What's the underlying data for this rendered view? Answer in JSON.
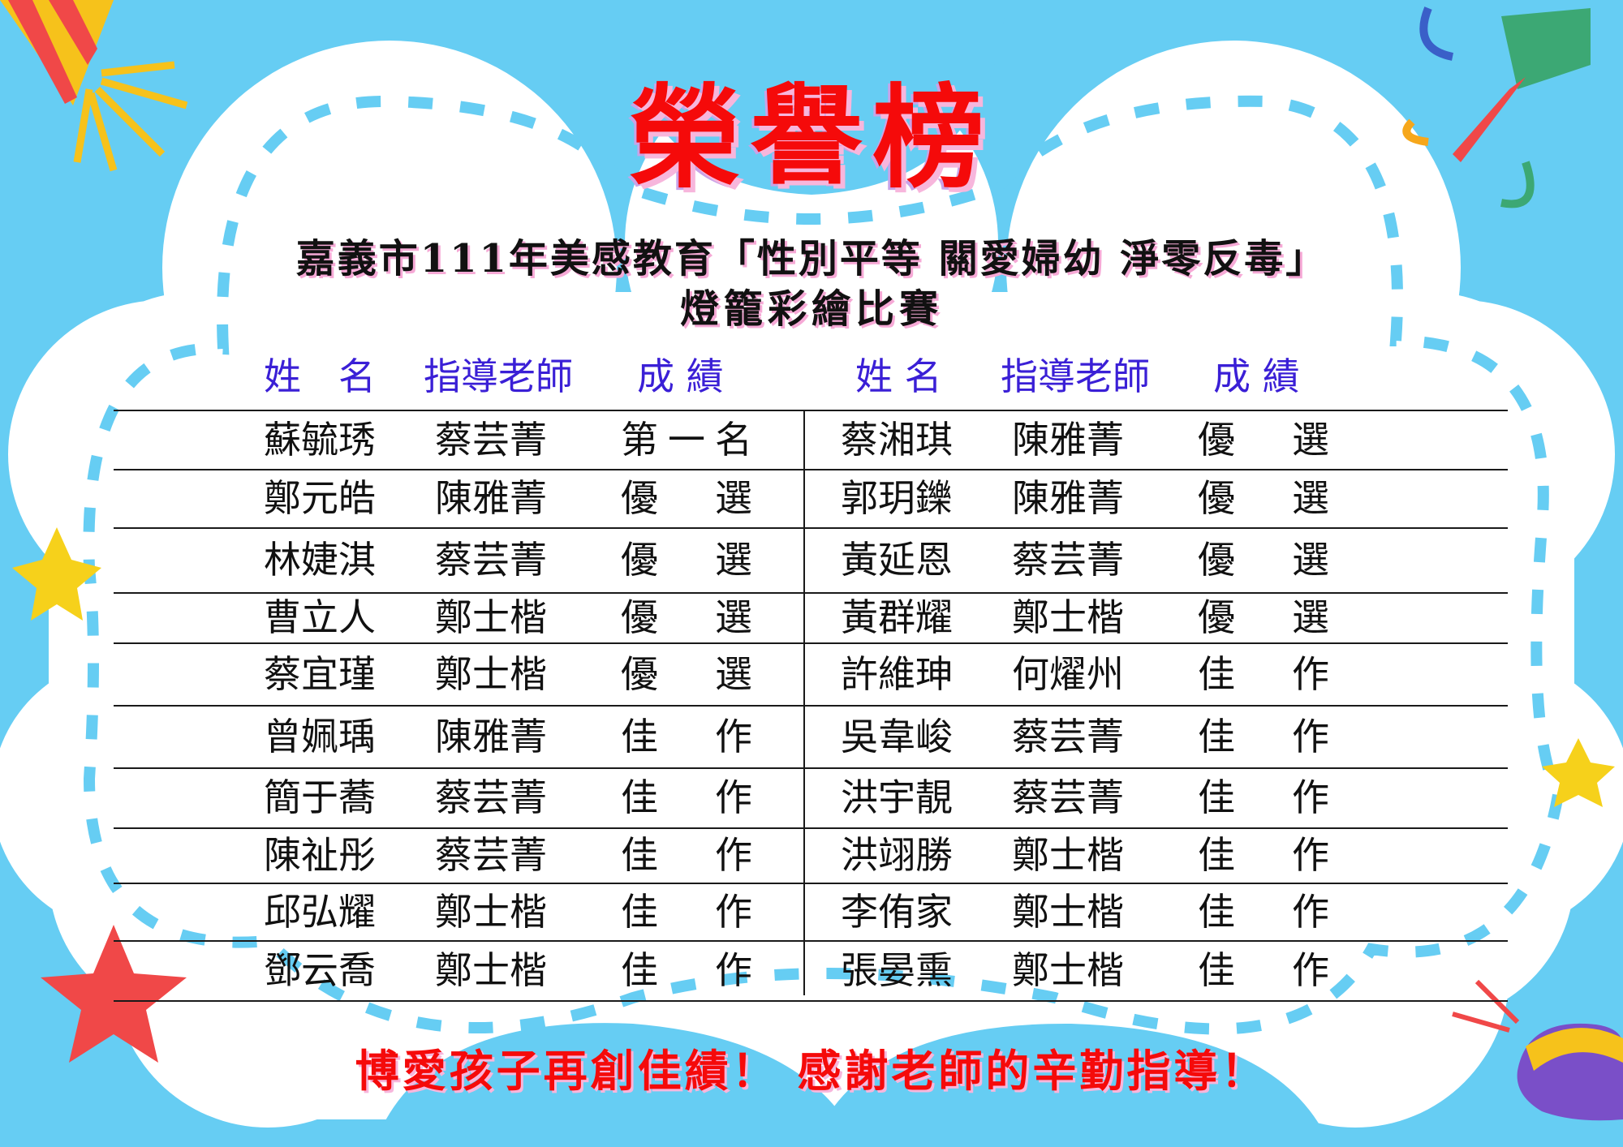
{
  "title": "榮譽榜",
  "subtitle_line1": "嘉義市111年美感教育「性別平等 關愛婦幼 淨零反毒」",
  "subtitle_line2": "燈籠彩繪比賽",
  "headers": {
    "left": {
      "name": "姓　名",
      "teacher": "指導老師",
      "result": "成 績"
    },
    "right": {
      "name": "姓 名",
      "teacher": "指導老師",
      "result": "成 績"
    }
  },
  "rows_left": [
    {
      "name": "蘇毓琇",
      "teacher": "蔡芸菁",
      "result": "第一名"
    },
    {
      "name": "鄭元皓",
      "teacher": "陳雅菁",
      "result": "優　選"
    },
    {
      "name": "林婕淇",
      "teacher": "蔡芸菁",
      "result": "優　選"
    },
    {
      "name": "曹立人",
      "teacher": "鄭士楷",
      "result": "優　選"
    },
    {
      "name": "蔡宜瑾",
      "teacher": "鄭士楷",
      "result": "優　選"
    },
    {
      "name": "曾姵瑀",
      "teacher": "陳雅菁",
      "result": "佳　作"
    },
    {
      "name": "簡于蕎",
      "teacher": "蔡芸菁",
      "result": "佳　作"
    },
    {
      "name": "陳祉彤",
      "teacher": "蔡芸菁",
      "result": "佳　作"
    },
    {
      "name": "邱弘耀",
      "teacher": "鄭士楷",
      "result": "佳　作"
    },
    {
      "name": "鄧云喬",
      "teacher": "鄭士楷",
      "result": "佳　作"
    }
  ],
  "rows_right": [
    {
      "name": "蔡湘琪",
      "teacher": "陳雅菁",
      "result": "優　選"
    },
    {
      "name": "郭玥鑠",
      "teacher": "陳雅菁",
      "result": "優　選"
    },
    {
      "name": "黃延恩",
      "teacher": "蔡芸菁",
      "result": "優　選"
    },
    {
      "name": "黃群耀",
      "teacher": "鄭士楷",
      "result": "優　選"
    },
    {
      "name": "許維珅",
      "teacher": "何燿州",
      "result": "佳　作"
    },
    {
      "name": "吳韋峻",
      "teacher": "蔡芸菁",
      "result": "佳　作"
    },
    {
      "name": "洪宇靚",
      "teacher": "蔡芸菁",
      "result": "佳　作"
    },
    {
      "name": "洪翊勝",
      "teacher": "鄭士楷",
      "result": "佳　作"
    },
    {
      "name": "李侑家",
      "teacher": "鄭士楷",
      "result": "佳　作"
    },
    {
      "name": "張晏熏",
      "teacher": "鄭士楷",
      "result": "佳　作"
    }
  ],
  "footer": "博愛孩子再創佳績！ 感謝老師的辛勤指導！",
  "colors": {
    "background": "#66cdf3",
    "title": "#f50a0a",
    "header": "#3a1fd6",
    "dash": "#66cdf3"
  }
}
